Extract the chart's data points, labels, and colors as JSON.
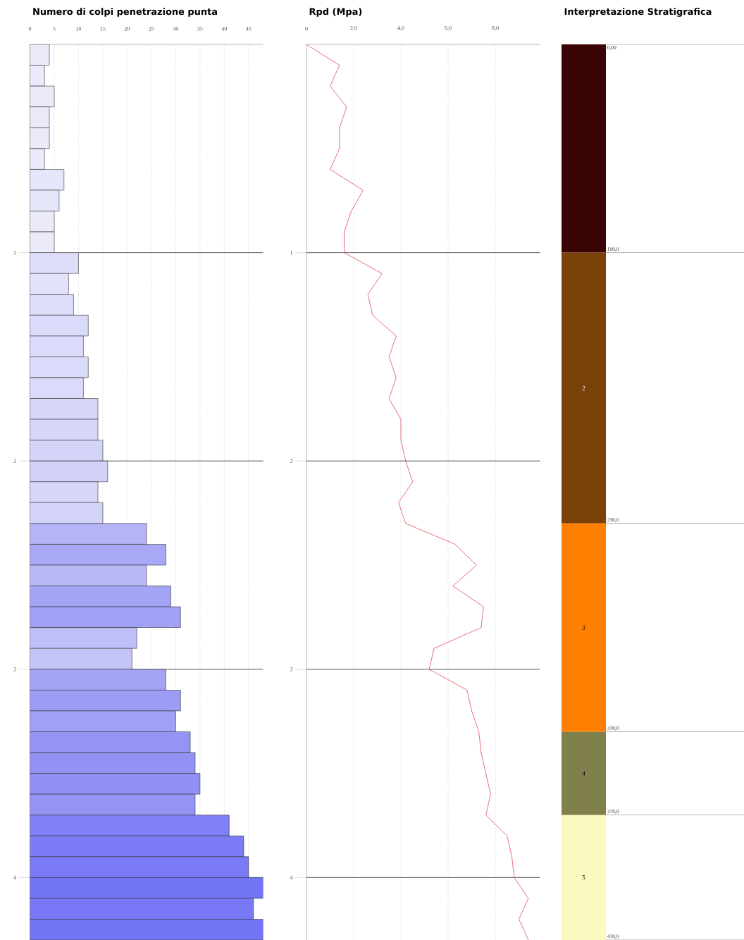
{
  "chart_data": [
    {
      "type": "histogram",
      "title": "Numero di colpi penetrazione punta",
      "orientation": "horizontal",
      "bins": [
        0,
        0.1,
        0.2,
        0.3,
        0.4,
        0.5,
        0.6,
        0.7,
        0.8,
        0.9,
        1.0,
        1.1,
        1.2,
        1.3,
        1.4,
        1.5,
        1.6,
        1.7,
        1.8,
        1.9,
        2.0,
        2.1,
        2.2,
        2.3,
        2.4,
        2.5,
        2.6,
        2.7,
        2.8,
        2.9,
        3.0,
        3.1,
        3.2,
        3.3,
        3.4,
        3.5,
        3.6,
        3.7,
        3.8,
        3.9,
        4.0,
        4.1,
        4.2,
        4.3
      ],
      "values": [
        4,
        3,
        5,
        4,
        4,
        3,
        7,
        6,
        5,
        5,
        10,
        8,
        9,
        12,
        11,
        12,
        11,
        14,
        14,
        15,
        16,
        14,
        15,
        24,
        28,
        24,
        29,
        31,
        22,
        21,
        28,
        31,
        30,
        33,
        34,
        35,
        34,
        41,
        44,
        45,
        48,
        46,
        48
      ],
      "colors": [
        "#eaeafb",
        "#eaeafb",
        "#eaeafb",
        "#eaeafb",
        "#eaeafb",
        "#eaeafb",
        "#e6e6fb",
        "#e6e6fb",
        "#eaeafb",
        "#eaeafb",
        "#dedefa",
        "#e2e2fa",
        "#dedefa",
        "#dadafa",
        "#dadafa",
        "#dadafa",
        "#dadafa",
        "#d6d6f9",
        "#d6d6f9",
        "#d4d4f9",
        "#d2d2f9",
        "#d6d6f9",
        "#d4d4f9",
        "#b4b4f6",
        "#a8a8f6",
        "#b8b8f7",
        "#a4a4f5",
        "#a0a0f5",
        "#c0c0f8",
        "#c4c4f9",
        "#a4a4f5",
        "#9c9cf4",
        "#a0a0f5",
        "#9494f4",
        "#9292f4",
        "#9090f4",
        "#9494f4",
        "#8080f6",
        "#7c7cf6",
        "#7a7af6",
        "#7474f6",
        "#7878f6",
        "#7474f6"
      ],
      "xlim": [
        0,
        48
      ],
      "xticks": [
        0,
        5,
        10,
        15,
        20,
        25,
        30,
        35,
        40,
        45
      ],
      "ylim": [
        4.3,
        0
      ],
      "yticks": [
        1,
        2,
        3,
        4
      ],
      "grid": true
    },
    {
      "type": "line",
      "title": "Rpd (Mpa)",
      "series": [
        {
          "color": "#e0303c",
          "line_style": "solid",
          "marker": "none",
          "x": [
            0,
            1.4,
            1.0,
            1.7,
            1.4,
            1.4,
            1.0,
            2.4,
            1.9,
            1.6,
            1.6,
            3.2,
            2.6,
            2.8,
            3.8,
            3.5,
            3.8,
            3.5,
            4.0,
            4.0,
            4.2,
            4.5,
            3.9,
            4.2,
            6.3,
            7.2,
            6.2,
            7.5,
            7.4,
            5.4,
            5.2,
            6.8,
            7.0,
            7.3,
            7.4,
            7.6,
            7.8,
            7.6,
            8.5,
            8.7,
            8.8,
            9.4,
            9.0,
            9.4
          ],
          "values": [
            0,
            0.1,
            0.2,
            0.3,
            0.4,
            0.5,
            0.6,
            0.7,
            0.8,
            0.9,
            1.0,
            1.1,
            1.2,
            1.3,
            1.4,
            1.5,
            1.6,
            1.7,
            1.8,
            1.9,
            2.0,
            2.1,
            2.2,
            2.3,
            2.4,
            2.5,
            2.6,
            2.7,
            2.8,
            2.9,
            3.0,
            3.1,
            3.2,
            3.3,
            3.4,
            3.5,
            3.6,
            3.7,
            3.8,
            3.9,
            4.0,
            4.1,
            4.2,
            4.3
          ]
        }
      ],
      "xlim": [
        0,
        9.9
      ],
      "xticks": [
        0,
        {
          "value": 2,
          "label": "2,0"
        },
        {
          "value": 4,
          "label": "4,0"
        },
        {
          "value": 6,
          "label": "6,0"
        },
        {
          "value": 8,
          "label": "8,0"
        }
      ],
      "ylim": [
        4.3,
        0
      ],
      "yticks": [
        1,
        2,
        3,
        4
      ],
      "grid": true
    },
    {
      "type": "bar",
      "title": "Interpretazione Stratigrafica",
      "stacked": true,
      "categories": [
        null
      ],
      "series": [
        {
          "color": "#3a0404",
          "values": [
            1.0
          ]
        },
        {
          "name": "2",
          "color": "#7a4208",
          "values": [
            1.3
          ]
        },
        {
          "name": "3",
          "color": "#ff8000",
          "values": [
            1.0
          ]
        },
        {
          "name": "4",
          "color": "#80804c",
          "values": [
            0.4
          ]
        },
        {
          "name": "5",
          "color": "#fafac0",
          "values": [
            0.6
          ]
        }
      ],
      "ylim": [
        4.3,
        0
      ],
      "tick_labels": false,
      "ref_lines": [
        {
          "axis": "y",
          "value": 0,
          "label": "0,00"
        },
        {
          "axis": "y",
          "value": 1.0,
          "label": "100,0"
        },
        {
          "axis": "y",
          "value": 2.3,
          "label": "230,0"
        },
        {
          "axis": "y",
          "value": 3.3,
          "label": "330,0"
        },
        {
          "axis": "y",
          "value": 3.7,
          "label": "370,0"
        },
        {
          "axis": "y",
          "value": 4.3,
          "label": "430,0"
        }
      ]
    }
  ]
}
